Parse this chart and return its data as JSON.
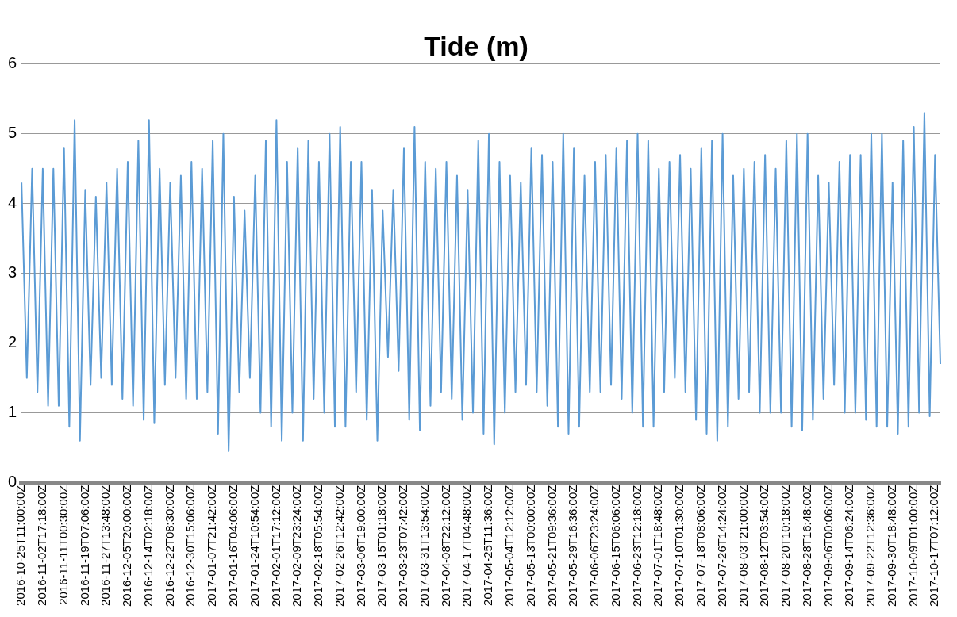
{
  "chart_data": {
    "type": "line",
    "title": "Tide (m)",
    "marker": "none",
    "grid": "y",
    "ylim": [
      0,
      6
    ],
    "yticks": [
      0,
      1,
      2,
      3,
      4,
      5,
      6
    ],
    "categories": [
      "2016-10-25T11:00:00Z",
      null,
      null,
      null,
      "2016-11-02T17:18:00Z",
      null,
      null,
      null,
      "2016-11-11T00:30:00Z",
      null,
      null,
      null,
      "2016-11-19T07:06:00Z",
      null,
      null,
      null,
      "2016-11-27T13:48:00Z",
      null,
      null,
      null,
      "2016-12-05T20:00:00Z",
      null,
      null,
      null,
      "2016-12-14T02:18:00Z",
      null,
      null,
      null,
      "2016-12-22T08:30:00Z",
      null,
      null,
      null,
      "2016-12-30T15:06:00Z",
      null,
      null,
      null,
      "2017-01-07T21:42:00Z",
      null,
      null,
      null,
      "2017-01-16T04:06:00Z",
      null,
      null,
      null,
      "2017-01-24T10:54:00Z",
      null,
      null,
      null,
      "2017-02-01T17:12:00Z",
      null,
      null,
      null,
      "2017-02-09T23:24:00Z",
      null,
      null,
      null,
      "2017-02-18T05:54:00Z",
      null,
      null,
      null,
      "2017-02-26T12:42:00Z",
      null,
      null,
      null,
      "2017-03-06T19:00:00Z",
      null,
      null,
      null,
      "2017-03-15T01:18:00Z",
      null,
      null,
      null,
      "2017-03-23T07:42:00Z",
      null,
      null,
      null,
      "2017-03-31T13:54:00Z",
      null,
      null,
      null,
      "2017-04-08T22:12:00Z",
      null,
      null,
      null,
      "2017-04-17T04:48:00Z",
      null,
      null,
      null,
      "2017-04-25T11:36:00Z",
      null,
      null,
      null,
      "2017-05-04T12:12:00Z",
      null,
      null,
      null,
      "2017-05-13T00:00:00Z",
      null,
      null,
      null,
      "2017-05-21T09:36:00Z",
      null,
      null,
      null,
      "2017-05-29T16:36:00Z",
      null,
      null,
      null,
      "2017-06-06T23:24:00Z",
      null,
      null,
      null,
      "2017-06-15T06:06:00Z",
      null,
      null,
      null,
      "2017-06-23T12:18:00Z",
      null,
      null,
      null,
      "2017-07-01T18:48:00Z",
      null,
      null,
      null,
      "2017-07-10T01:30:00Z",
      null,
      null,
      null,
      "2017-07-18T08:06:00Z",
      null,
      null,
      null,
      "2017-07-26T14:24:00Z",
      null,
      null,
      null,
      "2017-08-03T21:00:00Z",
      null,
      null,
      null,
      "2017-08-12T03:54:00Z",
      null,
      null,
      null,
      "2017-08-20T10:18:00Z",
      null,
      null,
      null,
      "2017-08-28T16:48:00Z",
      null,
      null,
      null,
      "2017-09-06T00:06:00Z",
      null,
      null,
      null,
      "2017-09-14T06:24:00Z",
      null,
      null,
      null,
      "2017-09-22T12:36:00Z",
      null,
      null,
      null,
      "2017-09-30T18:48:00Z",
      null,
      null,
      null,
      "2017-10-09T01:00:00Z",
      null,
      null,
      null,
      "2017-10-17T07:12:00Z",
      null
    ],
    "series": [
      {
        "color": "#5b9bd5",
        "values": [
          4.3,
          1.5,
          4.5,
          1.3,
          4.5,
          1.1,
          4.5,
          1.1,
          4.8,
          0.8,
          5.2,
          0.6,
          4.2,
          1.4,
          4.1,
          1.5,
          4.3,
          1.4,
          4.5,
          1.2,
          4.6,
          1.1,
          4.9,
          0.9,
          5.2,
          0.85,
          4.5,
          1.4,
          4.3,
          1.5,
          4.4,
          1.2,
          4.6,
          1.2,
          4.5,
          1.3,
          4.9,
          0.7,
          5.0,
          0.45,
          4.1,
          1.3,
          3.9,
          1.5,
          4.4,
          1.0,
          4.9,
          0.8,
          5.2,
          0.6,
          4.6,
          1.0,
          4.8,
          0.6,
          4.9,
          1.2,
          4.6,
          1.0,
          5.0,
          0.8,
          5.1,
          0.8,
          4.6,
          1.3,
          4.6,
          0.9,
          4.2,
          0.6,
          3.9,
          1.8,
          4.2,
          1.6,
          4.8,
          0.9,
          5.1,
          0.75,
          4.6,
          1.1,
          4.5,
          1.3,
          4.6,
          1.2,
          4.4,
          0.9,
          4.2,
          1.0,
          4.9,
          0.7,
          5.0,
          0.55,
          4.6,
          1.0,
          4.4,
          1.3,
          4.3,
          1.4,
          4.8,
          1.3,
          4.7,
          1.1,
          4.6,
          0.8,
          5.0,
          0.7,
          4.8,
          0.8,
          4.4,
          1.3,
          4.6,
          1.3,
          4.7,
          1.4,
          4.8,
          1.2,
          4.9,
          1.0,
          5.0,
          0.8,
          4.9,
          0.8,
          4.5,
          1.3,
          4.6,
          1.5,
          4.7,
          1.3,
          4.5,
          0.9,
          4.8,
          0.7,
          4.9,
          0.6,
          5.0,
          0.8,
          4.4,
          1.2,
          4.5,
          1.3,
          4.6,
          1.0,
          4.7,
          1.0,
          4.5,
          1.0,
          4.9,
          0.8,
          5.0,
          0.75,
          5.0,
          0.9,
          4.4,
          1.2,
          4.3,
          1.4,
          4.6,
          1.0,
          4.7,
          1.0,
          4.7,
          0.9,
          5.0,
          0.8,
          5.0,
          0.8,
          4.3,
          0.7,
          4.9,
          0.8,
          5.1,
          1.0,
          5.3,
          0.95,
          4.7,
          1.7
        ]
      }
    ]
  }
}
